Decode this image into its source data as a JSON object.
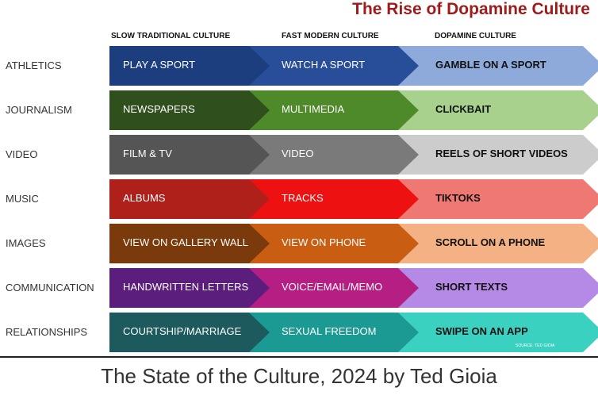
{
  "title": "The Rise of Dopamine Culture",
  "columns": [
    "SLOW TRADITIONAL CULTURE",
    "FAST MODERN CULTURE",
    "DOPAMINE CULTURE"
  ],
  "rows": [
    {
      "label": "ATHLETICS",
      "cells": [
        "PLAY A SPORT",
        "WATCH A SPORT",
        "GAMBLE ON A SPORT"
      ],
      "colors": [
        "#1c3d7e",
        "#284e9a",
        "#8eaadb"
      ],
      "text_colors": [
        "#ffffff",
        "#ffffff",
        "#111111"
      ]
    },
    {
      "label": "JOURNALISM",
      "cells": [
        "NEWSPAPERS",
        "MULTIMEDIA",
        "CLICKBAIT"
      ],
      "colors": [
        "#2f4f1d",
        "#4f8a2a",
        "#a9d18e"
      ],
      "text_colors": [
        "#ffffff",
        "#ffffff",
        "#111111"
      ]
    },
    {
      "label": "VIDEO",
      "cells": [
        "FILM &  TV",
        "VIDEO",
        "REELS OF SHORT VIDEOS"
      ],
      "colors": [
        "#555555",
        "#7a7a7a",
        "#cccccc"
      ],
      "text_colors": [
        "#ffffff",
        "#ffffff",
        "#111111"
      ]
    },
    {
      "label": "MUSIC",
      "cells": [
        "ALBUMS",
        "TRACKS",
        "TIKTOKS"
      ],
      "colors": [
        "#b0201b",
        "#ee1111",
        "#f07873"
      ],
      "text_colors": [
        "#ffffff",
        "#ffffff",
        "#111111"
      ]
    },
    {
      "label": "IMAGES",
      "cells": [
        "VIEW ON GALLERY WALL",
        "VIEW ON PHONE",
        "SCROLL ON A PHONE"
      ],
      "colors": [
        "#7a3a0c",
        "#c95e12",
        "#f4b183"
      ],
      "text_colors": [
        "#ffffff",
        "#ffffff",
        "#111111"
      ]
    },
    {
      "label": "COMMUNICATION",
      "cells": [
        "HANDWRITTEN LETTERS",
        "VOICE/EMAIL/MEMO",
        "SHORT TEXTS"
      ],
      "colors": [
        "#5b1e7d",
        "#b51f83",
        "#b58ae6"
      ],
      "text_colors": [
        "#ffffff",
        "#ffffff",
        "#111111"
      ]
    },
    {
      "label": "RELATIONSHIPS",
      "cells": [
        "COURTSHIP/MARRIAGE",
        "SEXUAL FREEDOM",
        "SWIPE ON AN APP"
      ],
      "colors": [
        "#1d5a5e",
        "#1b9a93",
        "#3ad1c0"
      ],
      "text_colors": [
        "#ffffff",
        "#ffffff",
        "#111111"
      ]
    }
  ],
  "source": "SOURCE: TED GIOIA",
  "caption": "The State of the Culture, 2024 by Ted Gioia"
}
